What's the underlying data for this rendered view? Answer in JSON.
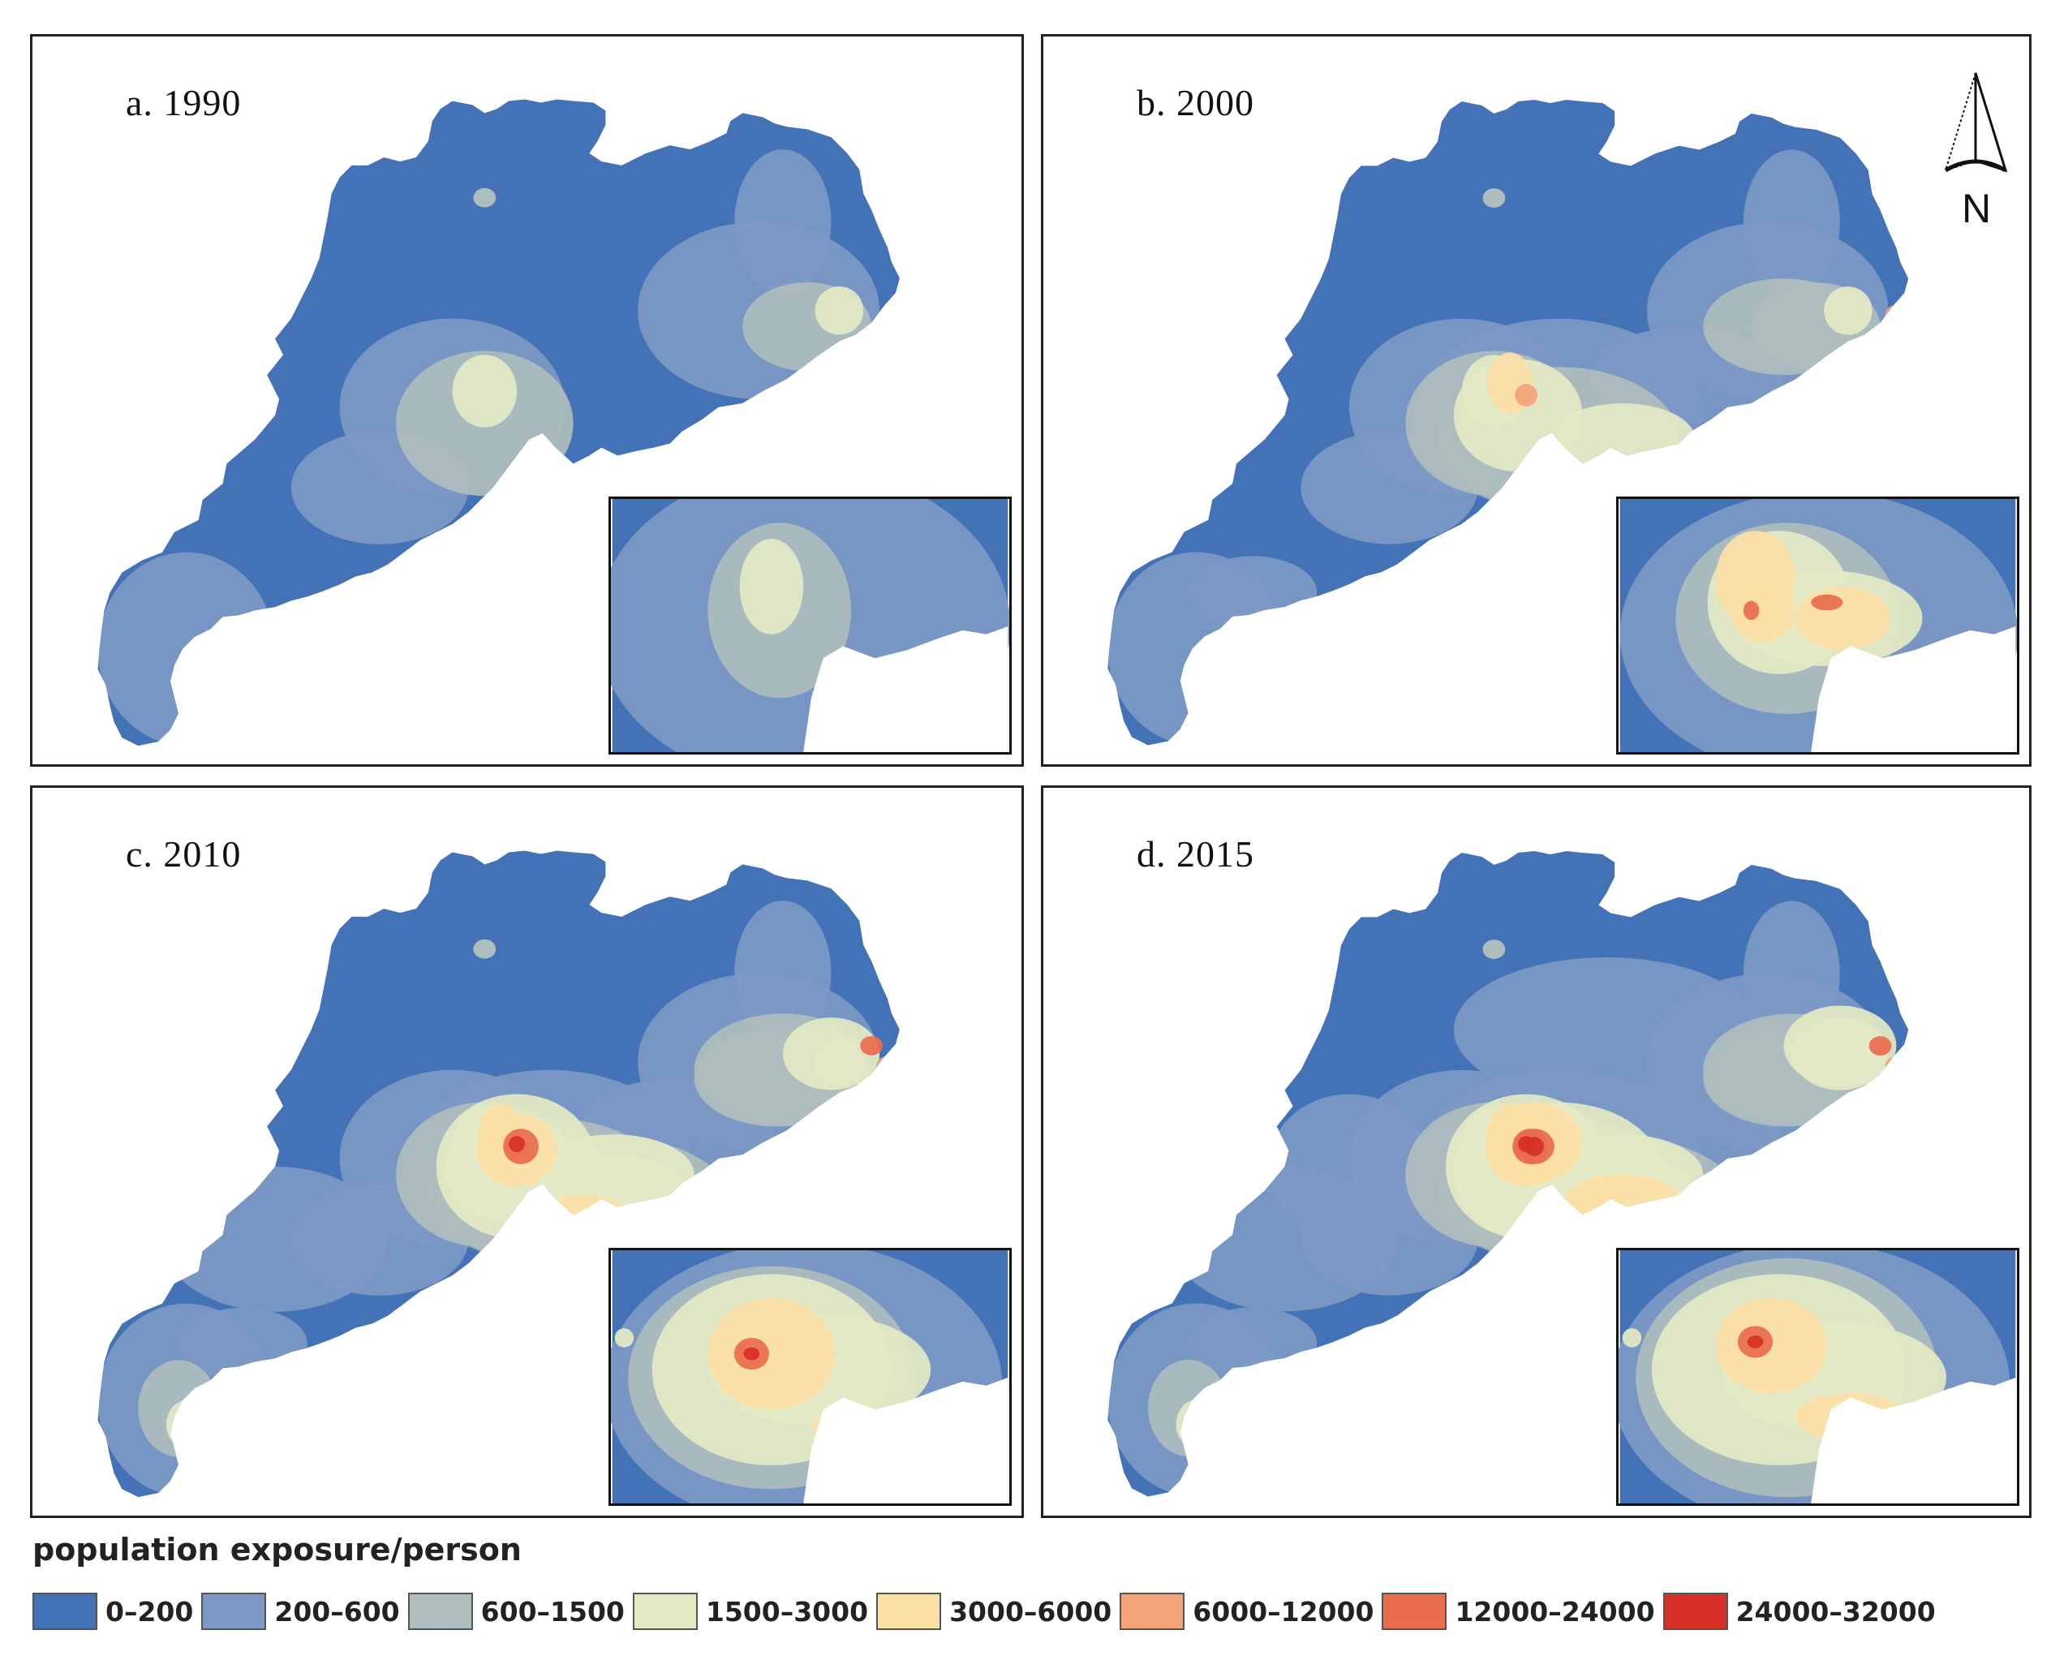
{
  "panels": [
    {
      "id": "a",
      "label": "a. 1990",
      "level": 0
    },
    {
      "id": "b",
      "label": "b. 2000",
      "level": 1
    },
    {
      "id": "c",
      "label": "c. 2010",
      "level": 2
    },
    {
      "id": "d",
      "label": "d. 2015",
      "level": 3
    }
  ],
  "north_arrow": {
    "label": "N"
  },
  "legend": {
    "title": "population exposure/person",
    "classes": [
      {
        "label": "0–200",
        "color": "#4472b6"
      },
      {
        "label": "200–600",
        "color": "#7d99c5"
      },
      {
        "label": "600–1500",
        "color": "#aebdbd"
      },
      {
        "label": "1500–3000",
        "color": "#e4e9c4"
      },
      {
        "label": "3000–6000",
        "color": "#fbe0a6"
      },
      {
        "label": "6000–12000",
        "color": "#f3a37a"
      },
      {
        "label": "12000–24000",
        "color": "#e96d4d"
      },
      {
        "label": "24000–32000",
        "color": "#d73027"
      }
    ]
  }
}
